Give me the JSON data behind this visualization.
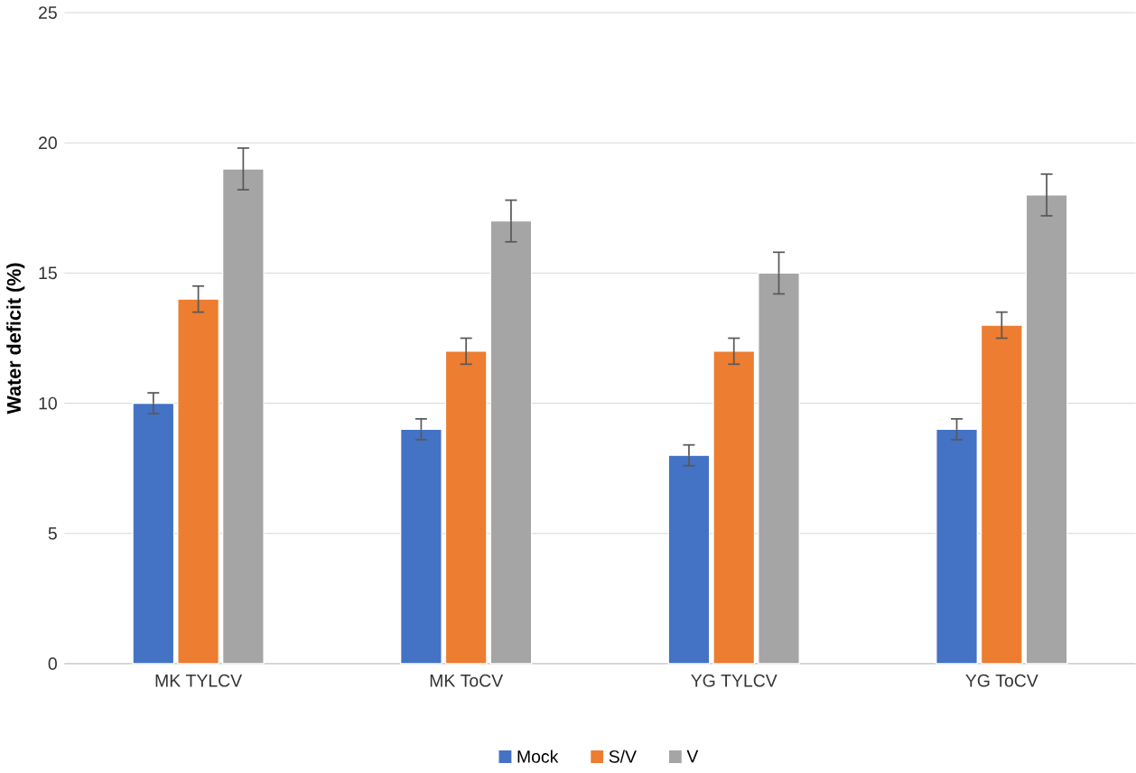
{
  "chart_data": {
    "type": "bar",
    "ylabel": "Water deficit (%)",
    "categories": [
      "MK TYLCV",
      "MK ToCV",
      "YG TYLCV",
      "YG ToCV"
    ],
    "series": [
      {
        "name": "Mock",
        "color": "#4472c4",
        "values": [
          10,
          9,
          8,
          9
        ],
        "errors": [
          0.4,
          0.4,
          0.4,
          0.4
        ]
      },
      {
        "name": "S/V",
        "color": "#ed7d31",
        "values": [
          14,
          12,
          12,
          13
        ],
        "errors": [
          0.5,
          0.5,
          0.5,
          0.5
        ]
      },
      {
        "name": "V",
        "color": "#a5a5a5",
        "values": [
          19,
          17,
          15,
          18
        ],
        "errors": [
          0.8,
          0.8,
          0.8,
          0.8
        ]
      }
    ],
    "ylim": [
      0,
      25
    ],
    "yticks": [
      0,
      5,
      10,
      15,
      20,
      25
    ],
    "grid": "y",
    "legend": "bottom"
  }
}
